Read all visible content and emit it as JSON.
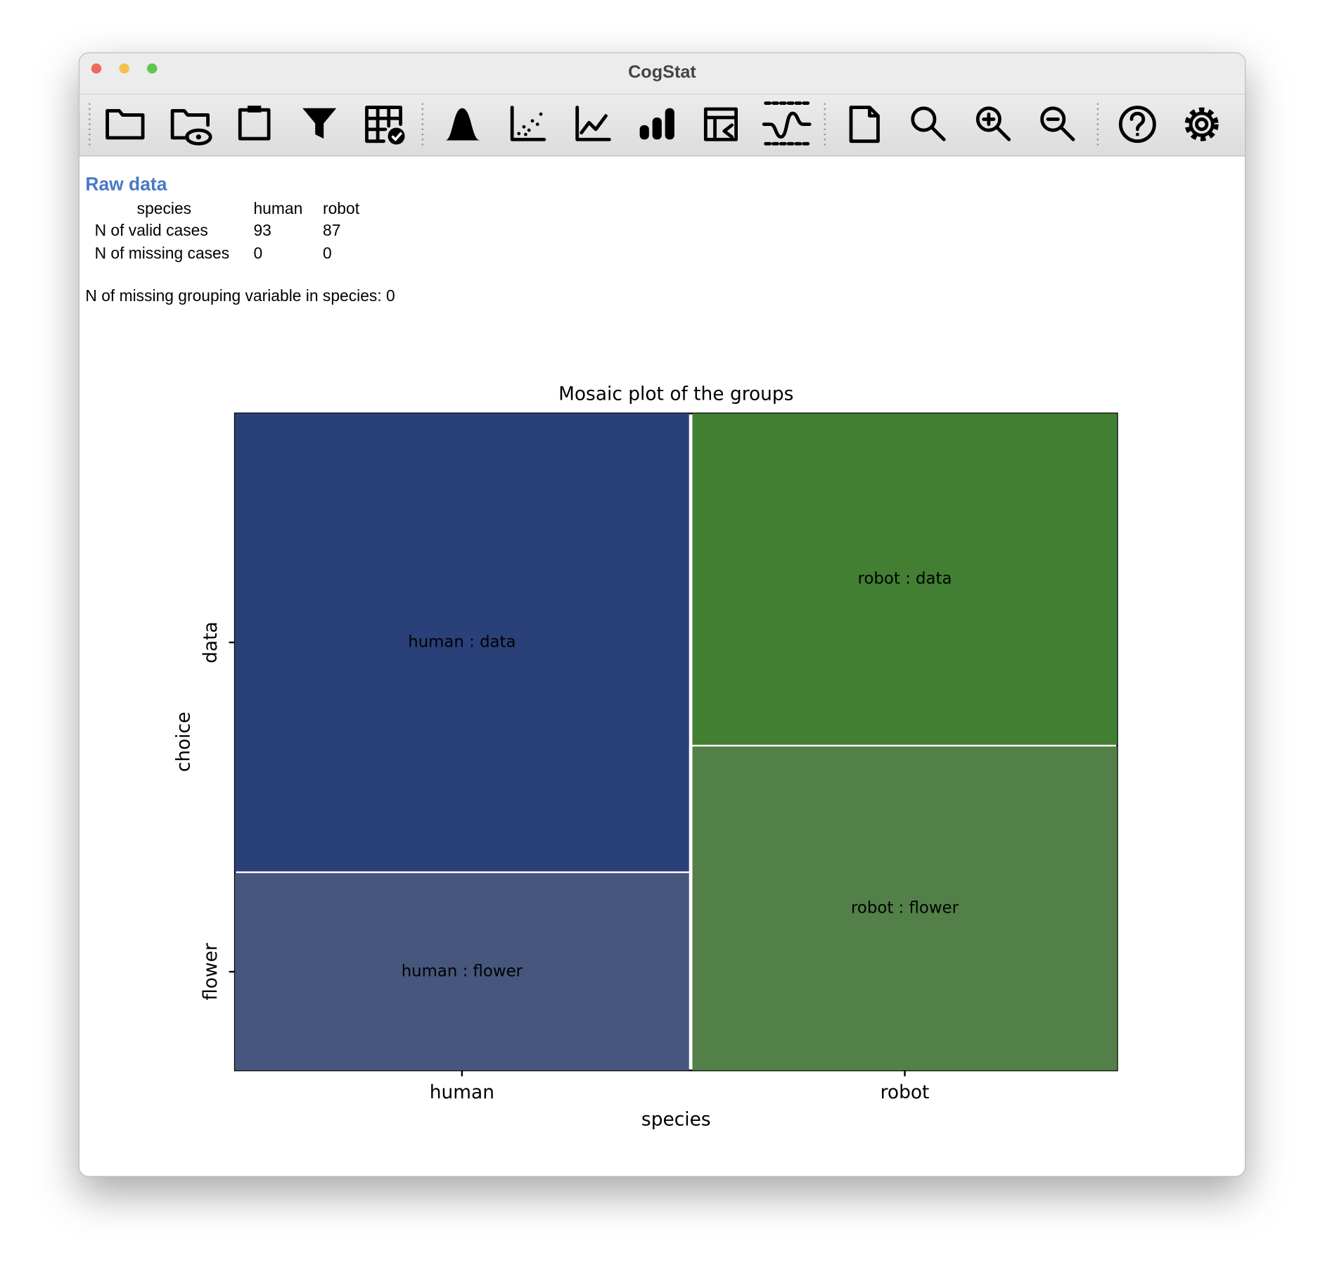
{
  "window_title": "CogStat",
  "raw_data": {
    "title": "Raw data",
    "header": [
      "species",
      "human",
      "robot"
    ],
    "rows": [
      [
        "N of valid cases",
        93,
        87
      ],
      [
        "N of missing cases",
        0,
        0
      ]
    ]
  },
  "note": "N of missing grouping variable in species: 0",
  "chart_data": {
    "type": "mosaic",
    "title": "Mosaic plot of the groups",
    "xlabel": "species",
    "ylabel": "choice",
    "categories": [
      "human",
      "robot"
    ],
    "series": [
      {
        "name": "data",
        "colors": [
          "#2a4079",
          "#427f32"
        ],
        "values": [
          65,
          44
        ],
        "labels": [
          "human : data",
          "robot : data"
        ]
      },
      {
        "name": "flower",
        "colors": [
          "#46567c",
          "#528048"
        ],
        "values": [
          28,
          43
        ],
        "labels": [
          "human : flower",
          "robot : flower"
        ]
      }
    ]
  }
}
